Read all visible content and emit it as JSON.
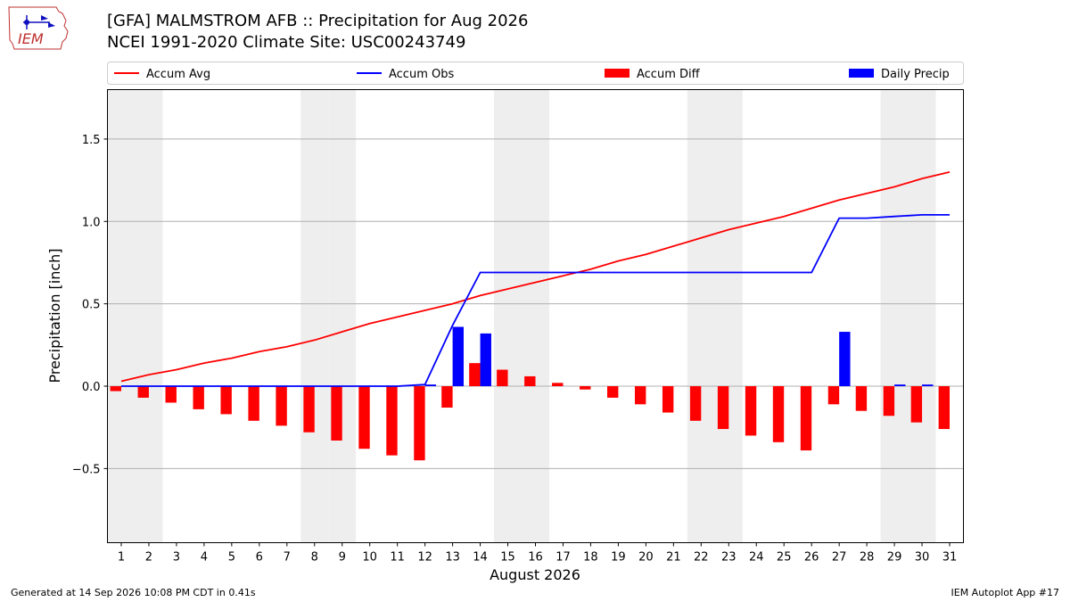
{
  "header": {
    "title_line1": "[GFA] MALMSTROM AFB :: Precipitation for Aug 2026",
    "title_line2": "NCEI 1991-2020 Climate Site: USC00243749"
  },
  "logo": {
    "text": "IEM",
    "icon": "iem-logo-icon"
  },
  "footer": {
    "left": "Generated at 14 Sep 2026 10:08 PM CDT in 0.41s",
    "right": "IEM Autoplot App #17"
  },
  "colors": {
    "avg": "#ff0000",
    "obs": "#0000ff",
    "diff": "#ff0000",
    "daily": "#0000ff",
    "weekend": "#eeeeee",
    "grid": "#b0b0b0"
  },
  "chart_data": {
    "type": "bar",
    "xlabel": "August 2026",
    "ylabel": "Precipitation [inch]",
    "ylim": [
      -0.95,
      1.8
    ],
    "yticks": [
      -0.5,
      0.0,
      0.5,
      1.0,
      1.5
    ],
    "ytick_labels": [
      "−0.5",
      "0.0",
      "0.5",
      "1.0",
      "1.5"
    ],
    "grid": "y",
    "legend_position": "top",
    "days": [
      1,
      2,
      3,
      4,
      5,
      6,
      7,
      8,
      9,
      10,
      11,
      12,
      13,
      14,
      15,
      16,
      17,
      18,
      19,
      20,
      21,
      22,
      23,
      24,
      25,
      26,
      27,
      28,
      29,
      30,
      31
    ],
    "weekend_days": [
      1,
      2,
      8,
      9,
      15,
      16,
      22,
      23,
      29,
      30
    ],
    "series": [
      {
        "name": "Accum Avg",
        "kind": "line",
        "color": "#ff0000",
        "values": [
          0.03,
          0.07,
          0.1,
          0.14,
          0.17,
          0.21,
          0.24,
          0.28,
          0.33,
          0.38,
          0.42,
          0.46,
          0.5,
          0.55,
          0.59,
          0.63,
          0.67,
          0.71,
          0.76,
          0.8,
          0.85,
          0.9,
          0.95,
          0.99,
          1.03,
          1.08,
          1.13,
          1.17,
          1.21,
          1.26,
          1.3
        ]
      },
      {
        "name": "Accum Obs",
        "kind": "line",
        "color": "#0000ff",
        "values": [
          0.0,
          0.0,
          0.0,
          0.0,
          0.0,
          0.0,
          0.0,
          0.0,
          0.0,
          0.0,
          0.0,
          0.01,
          0.37,
          0.69,
          0.69,
          0.69,
          0.69,
          0.69,
          0.69,
          0.69,
          0.69,
          0.69,
          0.69,
          0.69,
          0.69,
          0.69,
          1.02,
          1.02,
          1.03,
          1.04,
          1.04
        ]
      },
      {
        "name": "Accum Diff",
        "kind": "bar",
        "color": "#ff0000",
        "values": [
          -0.03,
          -0.07,
          -0.1,
          -0.14,
          -0.17,
          -0.21,
          -0.24,
          -0.28,
          -0.33,
          -0.38,
          -0.42,
          -0.45,
          -0.13,
          0.14,
          0.1,
          0.06,
          0.02,
          -0.02,
          -0.07,
          -0.11,
          -0.16,
          -0.21,
          -0.26,
          -0.3,
          -0.34,
          -0.39,
          -0.11,
          -0.15,
          -0.18,
          -0.22,
          -0.26
        ]
      },
      {
        "name": "Daily Precip",
        "kind": "bar",
        "color": "#0000ff",
        "values": [
          0,
          0,
          0,
          0,
          0,
          0,
          0,
          0,
          0,
          0,
          0,
          0.01,
          0.36,
          0.32,
          0,
          0,
          0,
          0,
          0,
          0,
          0,
          0,
          0,
          0,
          0,
          0,
          0.33,
          0,
          0.01,
          0.01,
          0
        ]
      }
    ]
  }
}
